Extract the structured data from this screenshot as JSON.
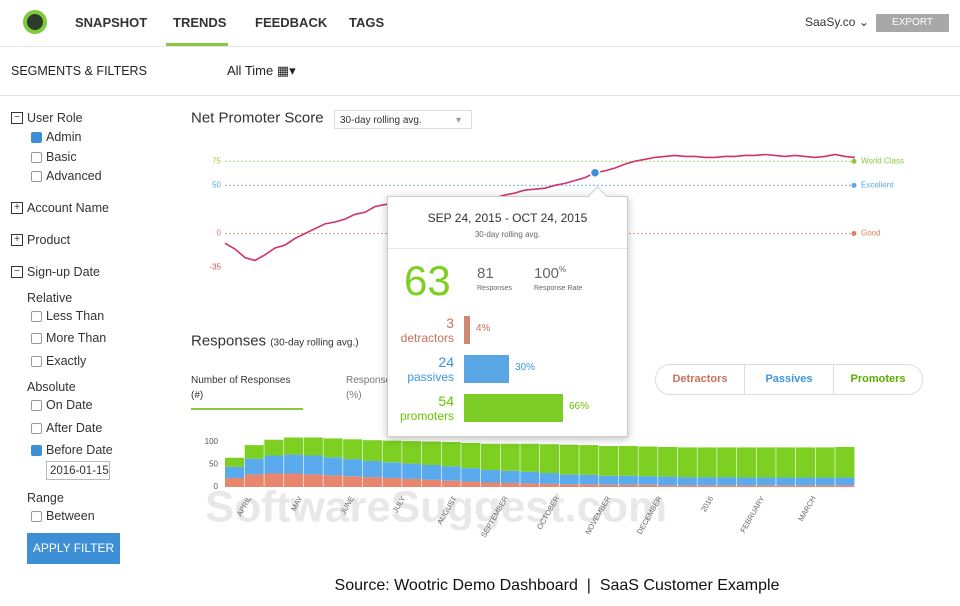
{
  "nav": {
    "items": [
      "SNAPSHOT",
      "TRENDS",
      "FEEDBACK",
      "TAGS"
    ],
    "account": "SaaSy.co",
    "export": "EXPORT"
  },
  "toolbar": {
    "segments_title": "SEGMENTS & FILTERS",
    "period": "All Time"
  },
  "sidebar": {
    "sections": [
      {
        "label": "User Role",
        "expanded": true,
        "options": [
          {
            "label": "Admin",
            "checked": true
          },
          {
            "label": "Basic",
            "checked": false
          },
          {
            "label": "Advanced",
            "checked": false
          }
        ]
      },
      {
        "label": "Account Name",
        "expanded": false
      },
      {
        "label": "Product",
        "expanded": false
      },
      {
        "label": "Sign-up Date",
        "expanded": true,
        "groups": [
          {
            "label": "Relative",
            "options": [
              {
                "label": "Less Than",
                "checked": false
              },
              {
                "label": "More Than",
                "checked": false
              },
              {
                "label": "Exactly",
                "checked": false
              }
            ]
          },
          {
            "label": "Absolute",
            "options": [
              {
                "label": "On Date",
                "checked": false
              },
              {
                "label": "After Date",
                "checked": false
              },
              {
                "label": "Before Date",
                "checked": true
              }
            ],
            "date": "2016-01-15"
          },
          {
            "label": "Range",
            "options": [
              {
                "label": "Between",
                "checked": false
              }
            ]
          }
        ]
      }
    ],
    "apply": "APPLY FILTER"
  },
  "chart_data": [
    {
      "type": "line",
      "title": "Net Promoter Score",
      "select": "30-day rolling avg.",
      "color": "#cf3468",
      "ylim": [
        -43,
        97
      ],
      "yticks": [
        75,
        50,
        0,
        -35
      ],
      "ytick_colors": [
        "#b8c43a",
        "#5aaaee",
        "#e0805a",
        "#d9534f"
      ],
      "thresholds": [
        {
          "name": "World Class",
          "value": 75,
          "color": "#8cc63f"
        },
        {
          "name": "Excellent",
          "value": 50,
          "color": "#5aaaee"
        },
        {
          "name": "Good",
          "value": 0,
          "color": "#e0805a"
        }
      ],
      "values": [
        -10,
        -16,
        -25,
        -28,
        -22,
        -15,
        -12,
        -5,
        0,
        5,
        10,
        12,
        15,
        20,
        22,
        28,
        30,
        31,
        30,
        32,
        30,
        33,
        34,
        35,
        36,
        38,
        38,
        37,
        40,
        42,
        45,
        46,
        47,
        50,
        52,
        55,
        58,
        63,
        65,
        68,
        72,
        75,
        77,
        79,
        80,
        81,
        80,
        80,
        79,
        79,
        80,
        80,
        81,
        81,
        82,
        81,
        80,
        81,
        80,
        79,
        80,
        82,
        80,
        79
      ]
    },
    {
      "type": "bar",
      "stacked": true,
      "title": "Responses",
      "subtitle": "(30-day rolling avg.)",
      "ylim": [
        0,
        110
      ],
      "yticks": [
        100,
        50,
        0
      ],
      "month_labels": [
        "APRIL",
        "MAY",
        "JUNE",
        "JULY",
        "AUGUST",
        "SEPTEMBER",
        "OCTOBER",
        "NOVEMBER",
        "DECEMBER",
        "2016",
        "FEBRUARY",
        "MARCH"
      ],
      "series": [
        {
          "name": "Detractors",
          "color": "#e8866e",
          "values": [
            20,
            28,
            30,
            30,
            28,
            26,
            24,
            22,
            20,
            18,
            16,
            14,
            12,
            10,
            9,
            8,
            7,
            6,
            6,
            5,
            5,
            5,
            4,
            4,
            4,
            4,
            4,
            4,
            4,
            4,
            4,
            4
          ]
        },
        {
          "name": "Passives",
          "color": "#5aaaee",
          "values": [
            25,
            35,
            40,
            42,
            42,
            40,
            38,
            36,
            35,
            34,
            33,
            32,
            30,
            28,
            27,
            26,
            24,
            22,
            21,
            20,
            20,
            19,
            19,
            18,
            18,
            18,
            17,
            17,
            17,
            17,
            17,
            17
          ]
        },
        {
          "name": "Promoters",
          "color": "#7dcf22",
          "values": [
            20,
            30,
            35,
            38,
            40,
            42,
            44,
            46,
            48,
            50,
            52,
            54,
            56,
            58,
            60,
            62,
            64,
            66,
            66,
            66,
            66,
            66,
            66,
            66,
            66,
            66,
            67,
            67,
            67,
            67,
            67,
            68
          ]
        }
      ]
    }
  ],
  "responses_panel": {
    "tabs": [
      {
        "label": "Number of Responses",
        "unit": "(#)"
      },
      {
        "label": "Responses",
        "unit": "(%)"
      }
    ]
  },
  "tooltip": {
    "date_range": "SEP 24, 2015 - OCT 24, 2015",
    "subtitle": "30-day rolling avg.",
    "score": 63,
    "responses": 81,
    "responses_label": "Responses",
    "rate": 100,
    "rate_unit": "%",
    "rate_label": "Response Rate",
    "groups": [
      {
        "count": 3,
        "name": "detractors",
        "pct": 4,
        "pct_label": "4%",
        "color": "#c8725a"
      },
      {
        "count": 24,
        "name": "passives",
        "pct": 30,
        "pct_label": "30%",
        "color": "#3d97e0"
      },
      {
        "count": 54,
        "name": "promoters",
        "pct": 66,
        "pct_label": "66%",
        "color": "#66c400"
      }
    ]
  },
  "watermark": "SoftwareSuggest.com",
  "caption": "Source: Wootric Demo Dashboard  |  SaaS Customer Example"
}
